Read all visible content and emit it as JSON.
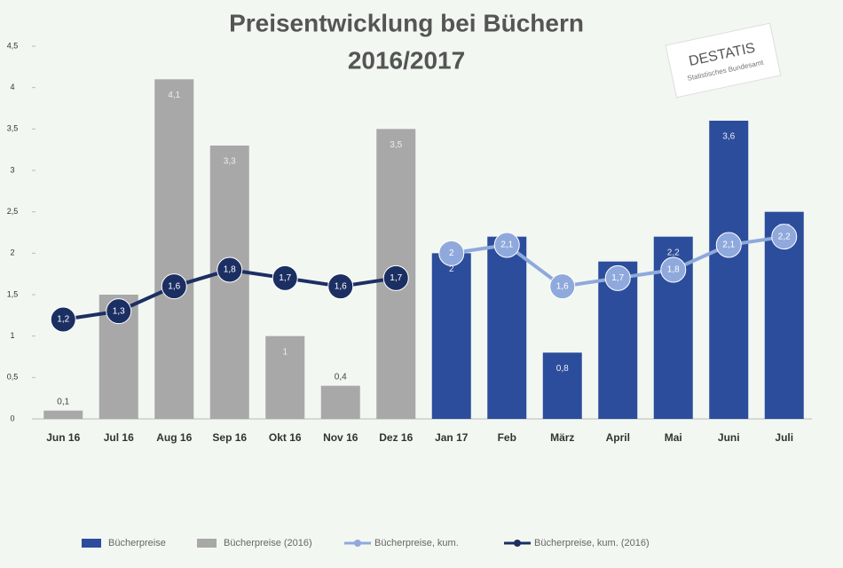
{
  "chart_data": {
    "type": "bar_line",
    "title": "Preisentwicklung bei Büchern",
    "subtitle": "2016/2017",
    "logo": {
      "name": "DESTATIS",
      "sub": "Statistisches Bundesamt"
    },
    "categories": [
      "Jun 16",
      "Jul 16",
      "Aug 16",
      "Sep 16",
      "Okt 16",
      "Nov 16",
      "Dez 16",
      "Jan 17",
      "Feb",
      "März",
      "April",
      "Mai",
      "Juni",
      "Juli"
    ],
    "ylim": [
      0,
      4.5
    ],
    "yticks": [
      0,
      {
        "value": 0.5,
        "label": "0,5"
      },
      1,
      {
        "value": 1.5,
        "label": "1,5"
      },
      2,
      {
        "value": 2.5,
        "label": "2,5"
      },
      3,
      {
        "value": 3.5,
        "label": "3,5"
      },
      4,
      {
        "value": 4.5,
        "label": "4,5"
      }
    ],
    "series": [
      {
        "name": "Bücherpreise",
        "kind": "bar",
        "color": "#2c4d9c",
        "values": [
          null,
          null,
          null,
          null,
          null,
          null,
          null,
          2,
          2.2,
          0.8,
          1.9,
          2.2,
          3.6,
          2.5
        ],
        "value_labels": [
          null,
          null,
          null,
          null,
          null,
          null,
          null,
          "2",
          "2,2",
          "0,8",
          "1,9",
          "2,2",
          "3,6",
          "2,5"
        ]
      },
      {
        "name": "Bücherpreise (2016)",
        "kind": "bar",
        "color": "#a8a8a8",
        "values": [
          0.1,
          1.5,
          4.1,
          3.3,
          1,
          0.4,
          3.5,
          null,
          null,
          null,
          null,
          null,
          null,
          null
        ],
        "value_labels": [
          "0,1",
          "1,5",
          "4,1",
          "3,3",
          "1",
          "0,4",
          "3,5",
          null,
          null,
          null,
          null,
          null,
          null,
          null
        ]
      },
      {
        "name": "Bücherpreise, kum.",
        "kind": "line",
        "color": "#8fa9dc",
        "values": [
          null,
          null,
          null,
          null,
          null,
          null,
          null,
          2,
          2.1,
          1.6,
          1.7,
          1.8,
          2.1,
          2.2
        ],
        "value_labels": [
          null,
          null,
          null,
          null,
          null,
          null,
          null,
          "2",
          "2,1",
          "1,6",
          "1,7",
          "1,8",
          "2,1",
          "2,2"
        ]
      },
      {
        "name": "Bücherpreise, kum. (2016)",
        "kind": "line",
        "color": "#1c2f63",
        "values": [
          1.2,
          1.3,
          1.6,
          1.8,
          1.7,
          1.6,
          1.7,
          null,
          null,
          null,
          null,
          null,
          null,
          null
        ],
        "value_labels": [
          "1,2",
          "1,3",
          "1,6",
          "1,8",
          "1,7",
          "1,6",
          "1,7",
          null,
          null,
          null,
          null,
          null,
          null,
          null
        ]
      }
    ]
  }
}
